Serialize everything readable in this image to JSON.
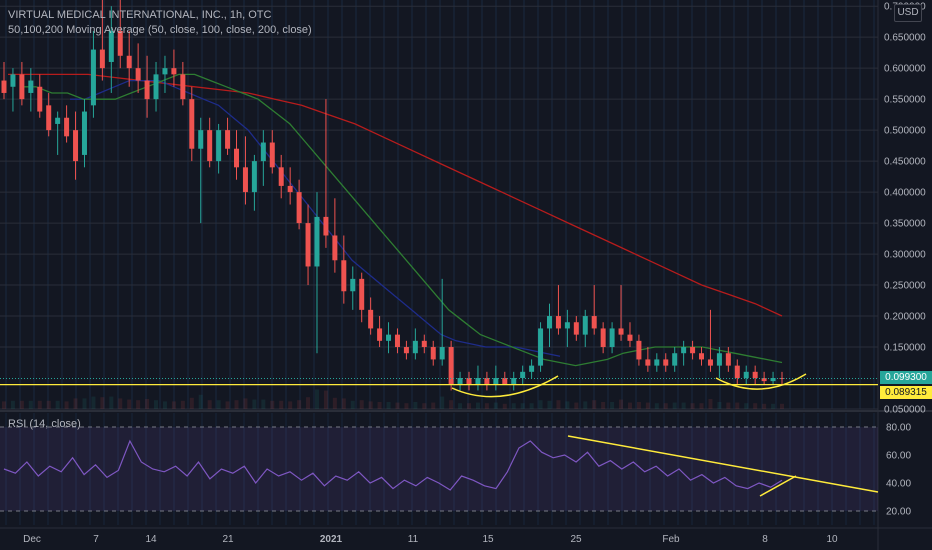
{
  "header": {
    "title": "VIRTUAL MEDICAL INTERNATIONAL, INC., 1h, OTC",
    "indicator": "50,100,200 Moving Average (50, close, 100, close, 200, close)"
  },
  "rsi_pane": {
    "label": "RSI (14, close)"
  },
  "price_axis": {
    "currency": "USD",
    "ticks": [
      "0.700000",
      "0.650000",
      "0.600000",
      "0.550000",
      "0.500000",
      "0.450000",
      "0.400000",
      "0.350000",
      "0.300000",
      "0.250000",
      "0.200000",
      "0.150000",
      "0.050000"
    ],
    "current_price_label": "0.099300",
    "horizontal_line_label": "0.089315"
  },
  "rsi_axis": {
    "ticks": [
      "80.00",
      "60.00",
      "40.00",
      "20.00"
    ]
  },
  "time_axis": {
    "ticks": [
      "Dec",
      "7",
      "14",
      "21",
      "2021",
      "11",
      "15",
      "25",
      "Feb",
      "8",
      "10"
    ]
  },
  "colors": {
    "background": "#131722",
    "up": "#26a69a",
    "down": "#ef5350",
    "ma50": "#2e7d32",
    "ma100": "#1e2c8a",
    "ma200": "#b71c1c",
    "rsi": "#7e57c2",
    "drawing": "#ffeb3b"
  },
  "chart_data": {
    "type": "candlestick",
    "title": "VIRTUAL MEDICAL INTERNATIONAL, INC., 1h, OTC",
    "x_labels": [
      "Dec",
      "7",
      "14",
      "21",
      "2021",
      "11",
      "15",
      "25",
      "Feb",
      "8",
      "10"
    ],
    "ylim": [
      0.05,
      0.71
    ],
    "horizontal_line": 0.089315,
    "last_price": 0.0993,
    "candles": [
      {
        "o": 0.58,
        "h": 0.61,
        "l": 0.55,
        "c": 0.56
      },
      {
        "o": 0.57,
        "h": 0.6,
        "l": 0.53,
        "c": 0.59
      },
      {
        "o": 0.59,
        "h": 0.61,
        "l": 0.54,
        "c": 0.55
      },
      {
        "o": 0.56,
        "h": 0.6,
        "l": 0.53,
        "c": 0.58
      },
      {
        "o": 0.57,
        "h": 0.59,
        "l": 0.52,
        "c": 0.53
      },
      {
        "o": 0.54,
        "h": 0.56,
        "l": 0.49,
        "c": 0.5
      },
      {
        "o": 0.51,
        "h": 0.53,
        "l": 0.46,
        "c": 0.52
      },
      {
        "o": 0.52,
        "h": 0.54,
        "l": 0.48,
        "c": 0.49
      },
      {
        "o": 0.5,
        "h": 0.53,
        "l": 0.42,
        "c": 0.45
      },
      {
        "o": 0.46,
        "h": 0.55,
        "l": 0.44,
        "c": 0.53
      },
      {
        "o": 0.54,
        "h": 0.66,
        "l": 0.52,
        "c": 0.63
      },
      {
        "o": 0.63,
        "h": 0.71,
        "l": 0.58,
        "c": 0.6
      },
      {
        "o": 0.61,
        "h": 0.7,
        "l": 0.56,
        "c": 0.66
      },
      {
        "o": 0.66,
        "h": 0.71,
        "l": 0.6,
        "c": 0.62
      },
      {
        "o": 0.62,
        "h": 0.66,
        "l": 0.57,
        "c": 0.6
      },
      {
        "o": 0.6,
        "h": 0.64,
        "l": 0.56,
        "c": 0.58
      },
      {
        "o": 0.58,
        "h": 0.62,
        "l": 0.52,
        "c": 0.55
      },
      {
        "o": 0.55,
        "h": 0.61,
        "l": 0.53,
        "c": 0.59
      },
      {
        "o": 0.59,
        "h": 0.62,
        "l": 0.56,
        "c": 0.6
      },
      {
        "o": 0.6,
        "h": 0.63,
        "l": 0.57,
        "c": 0.59
      },
      {
        "o": 0.59,
        "h": 0.61,
        "l": 0.54,
        "c": 0.55
      },
      {
        "o": 0.55,
        "h": 0.57,
        "l": 0.45,
        "c": 0.47
      },
      {
        "o": 0.47,
        "h": 0.52,
        "l": 0.35,
        "c": 0.5
      },
      {
        "o": 0.5,
        "h": 0.52,
        "l": 0.44,
        "c": 0.45
      },
      {
        "o": 0.45,
        "h": 0.51,
        "l": 0.43,
        "c": 0.5
      },
      {
        "o": 0.5,
        "h": 0.52,
        "l": 0.46,
        "c": 0.47
      },
      {
        "o": 0.47,
        "h": 0.5,
        "l": 0.42,
        "c": 0.44
      },
      {
        "o": 0.44,
        "h": 0.49,
        "l": 0.38,
        "c": 0.4
      },
      {
        "o": 0.4,
        "h": 0.46,
        "l": 0.37,
        "c": 0.45
      },
      {
        "o": 0.45,
        "h": 0.5,
        "l": 0.41,
        "c": 0.48
      },
      {
        "o": 0.48,
        "h": 0.5,
        "l": 0.43,
        "c": 0.44
      },
      {
        "o": 0.44,
        "h": 0.46,
        "l": 0.39,
        "c": 0.41
      },
      {
        "o": 0.41,
        "h": 0.44,
        "l": 0.38,
        "c": 0.4
      },
      {
        "o": 0.4,
        "h": 0.42,
        "l": 0.34,
        "c": 0.35
      },
      {
        "o": 0.35,
        "h": 0.38,
        "l": 0.25,
        "c": 0.28
      },
      {
        "o": 0.28,
        "h": 0.4,
        "l": 0.14,
        "c": 0.36
      },
      {
        "o": 0.36,
        "h": 0.55,
        "l": 0.31,
        "c": 0.33
      },
      {
        "o": 0.33,
        "h": 0.39,
        "l": 0.27,
        "c": 0.29
      },
      {
        "o": 0.29,
        "h": 0.33,
        "l": 0.22,
        "c": 0.24
      },
      {
        "o": 0.24,
        "h": 0.28,
        "l": 0.21,
        "c": 0.26
      },
      {
        "o": 0.26,
        "h": 0.27,
        "l": 0.19,
        "c": 0.21
      },
      {
        "o": 0.21,
        "h": 0.23,
        "l": 0.17,
        "c": 0.18
      },
      {
        "o": 0.18,
        "h": 0.2,
        "l": 0.15,
        "c": 0.16
      },
      {
        "o": 0.16,
        "h": 0.19,
        "l": 0.14,
        "c": 0.17
      },
      {
        "o": 0.17,
        "h": 0.18,
        "l": 0.14,
        "c": 0.15
      },
      {
        "o": 0.15,
        "h": 0.16,
        "l": 0.13,
        "c": 0.14
      },
      {
        "o": 0.14,
        "h": 0.18,
        "l": 0.13,
        "c": 0.16
      },
      {
        "o": 0.16,
        "h": 0.17,
        "l": 0.14,
        "c": 0.15
      },
      {
        "o": 0.15,
        "h": 0.16,
        "l": 0.12,
        "c": 0.13
      },
      {
        "o": 0.13,
        "h": 0.26,
        "l": 0.12,
        "c": 0.15
      },
      {
        "o": 0.15,
        "h": 0.16,
        "l": 0.08,
        "c": 0.09
      },
      {
        "o": 0.09,
        "h": 0.11,
        "l": 0.08,
        "c": 0.1
      },
      {
        "o": 0.1,
        "h": 0.11,
        "l": 0.08,
        "c": 0.09
      },
      {
        "o": 0.09,
        "h": 0.12,
        "l": 0.08,
        "c": 0.1
      },
      {
        "o": 0.1,
        "h": 0.11,
        "l": 0.08,
        "c": 0.09
      },
      {
        "o": 0.09,
        "h": 0.12,
        "l": 0.08,
        "c": 0.1
      },
      {
        "o": 0.1,
        "h": 0.11,
        "l": 0.09,
        "c": 0.09
      },
      {
        "o": 0.09,
        "h": 0.11,
        "l": 0.08,
        "c": 0.1
      },
      {
        "o": 0.1,
        "h": 0.12,
        "l": 0.09,
        "c": 0.11
      },
      {
        "o": 0.11,
        "h": 0.13,
        "l": 0.1,
        "c": 0.12
      },
      {
        "o": 0.12,
        "h": 0.19,
        "l": 0.11,
        "c": 0.18
      },
      {
        "o": 0.18,
        "h": 0.22,
        "l": 0.15,
        "c": 0.2
      },
      {
        "o": 0.2,
        "h": 0.25,
        "l": 0.17,
        "c": 0.18
      },
      {
        "o": 0.18,
        "h": 0.21,
        "l": 0.15,
        "c": 0.19
      },
      {
        "o": 0.19,
        "h": 0.2,
        "l": 0.16,
        "c": 0.17
      },
      {
        "o": 0.17,
        "h": 0.21,
        "l": 0.15,
        "c": 0.2
      },
      {
        "o": 0.2,
        "h": 0.25,
        "l": 0.17,
        "c": 0.18
      },
      {
        "o": 0.18,
        "h": 0.19,
        "l": 0.14,
        "c": 0.15
      },
      {
        "o": 0.15,
        "h": 0.19,
        "l": 0.14,
        "c": 0.18
      },
      {
        "o": 0.18,
        "h": 0.25,
        "l": 0.16,
        "c": 0.17
      },
      {
        "o": 0.17,
        "h": 0.19,
        "l": 0.15,
        "c": 0.16
      },
      {
        "o": 0.16,
        "h": 0.17,
        "l": 0.12,
        "c": 0.13
      },
      {
        "o": 0.13,
        "h": 0.15,
        "l": 0.11,
        "c": 0.12
      },
      {
        "o": 0.12,
        "h": 0.14,
        "l": 0.11,
        "c": 0.13
      },
      {
        "o": 0.13,
        "h": 0.14,
        "l": 0.11,
        "c": 0.12
      },
      {
        "o": 0.12,
        "h": 0.15,
        "l": 0.11,
        "c": 0.14
      },
      {
        "o": 0.14,
        "h": 0.16,
        "l": 0.12,
        "c": 0.15
      },
      {
        "o": 0.15,
        "h": 0.16,
        "l": 0.13,
        "c": 0.14
      },
      {
        "o": 0.14,
        "h": 0.15,
        "l": 0.12,
        "c": 0.13
      },
      {
        "o": 0.13,
        "h": 0.21,
        "l": 0.11,
        "c": 0.12
      },
      {
        "o": 0.12,
        "h": 0.15,
        "l": 0.1,
        "c": 0.14
      },
      {
        "o": 0.14,
        "h": 0.15,
        "l": 0.11,
        "c": 0.12
      },
      {
        "o": 0.12,
        "h": 0.13,
        "l": 0.09,
        "c": 0.1
      },
      {
        "o": 0.1,
        "h": 0.12,
        "l": 0.09,
        "c": 0.11
      },
      {
        "o": 0.11,
        "h": 0.12,
        "l": 0.09,
        "c": 0.1
      },
      {
        "o": 0.1,
        "h": 0.11,
        "l": 0.09,
        "c": 0.095
      },
      {
        "o": 0.095,
        "h": 0.11,
        "l": 0.09,
        "c": 0.1
      },
      {
        "o": 0.1,
        "h": 0.11,
        "l": 0.09,
        "c": 0.0993
      }
    ],
    "ma50": [
      0.57,
      0.57,
      0.56,
      0.56,
      0.55,
      0.55,
      0.55,
      0.56,
      0.57,
      0.58,
      0.59,
      0.59,
      0.58,
      0.57,
      0.56,
      0.55,
      0.53,
      0.51,
      0.48,
      0.45,
      0.42,
      0.39,
      0.36,
      0.33,
      0.3,
      0.27,
      0.24,
      0.21,
      0.19,
      0.17,
      0.16,
      0.15,
      0.14,
      0.13,
      0.125,
      0.12,
      0.125,
      0.13,
      0.14,
      0.145,
      0.15,
      0.15,
      0.15,
      0.15,
      0.145,
      0.14,
      0.135,
      0.13,
      0.125
    ],
    "ma100": [
      0.55,
      0.55,
      0.56,
      0.57,
      0.58,
      0.58,
      0.58,
      0.57,
      0.56,
      0.55,
      0.54,
      0.52,
      0.5,
      0.47,
      0.44,
      0.41,
      0.38,
      0.35,
      0.32,
      0.29,
      0.27,
      0.25,
      0.23,
      0.21,
      0.19,
      0.17,
      0.16,
      0.155,
      0.15,
      0.15,
      0.15,
      0.145,
      0.14,
      0.135
    ],
    "ma200": [
      0.59,
      0.59,
      0.59,
      0.59,
      0.585,
      0.58,
      0.575,
      0.57,
      0.565,
      0.56,
      0.55,
      0.54,
      0.525,
      0.51,
      0.49,
      0.47,
      0.45,
      0.43,
      0.41,
      0.39,
      0.37,
      0.35,
      0.33,
      0.31,
      0.29,
      0.27,
      0.25,
      0.235,
      0.22,
      0.2
    ],
    "rsi": [
      50,
      47,
      55,
      45,
      52,
      48,
      58,
      46,
      53,
      44,
      49,
      70,
      55,
      50,
      48,
      52,
      45,
      55,
      43,
      50,
      47,
      52,
      40,
      50,
      45,
      48,
      42,
      47,
      38,
      45,
      42,
      48,
      40,
      44,
      36,
      42,
      38,
      44,
      40,
      35,
      45,
      42,
      38,
      36,
      48,
      65,
      70,
      62,
      58,
      60,
      55,
      62,
      52,
      56,
      50,
      55,
      48,
      52,
      45,
      50,
      42,
      46,
      40,
      44,
      38,
      36,
      40,
      37,
      42
    ],
    "rsi_ylim": [
      10,
      90
    ],
    "rsi_levels": [
      80,
      20
    ]
  }
}
